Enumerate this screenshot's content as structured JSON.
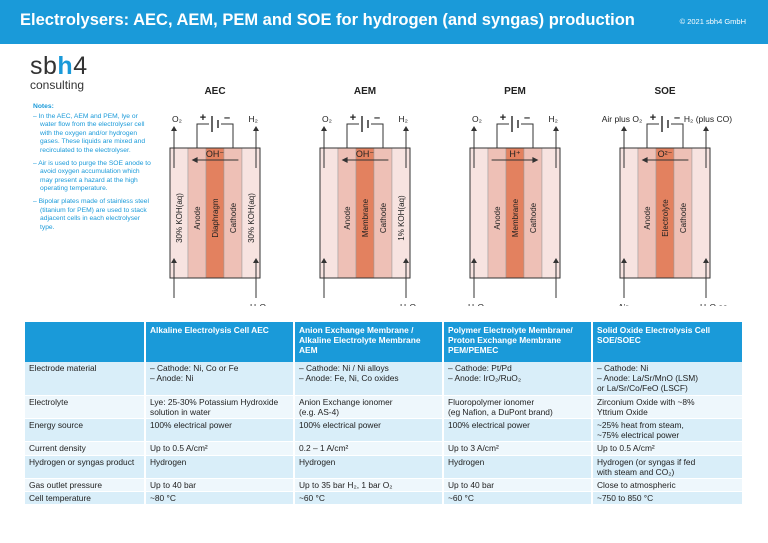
{
  "header": {
    "title": "Electrolysers: AEC, AEM, PEM and SOE for hydrogen (and syngas) production",
    "copyright": "© 2021 sbh4 GmbH"
  },
  "logo": {
    "brand_a": "sb",
    "brand_b": "h",
    "brand_c": "4",
    "sub": "consulting"
  },
  "notes": {
    "heading": "Notes:",
    "items": [
      "– In the AEC, AEM and PEM, lye or water flow from the electrolyser cell with the oxygen and/or hydrogen gases. These liquids are mixed and recirculated to the electrolyser.",
      "– Air is used to purge the SOE anode to avoid oxygen accumulation which may present a hazard at the high operating temperature.",
      "– Bipolar plates made of stainless steel (titanium for PEM) are used to stack adjacent cells in each electrolyser type."
    ]
  },
  "diagrams": {
    "colors": {
      "outer": "#f7e3e0",
      "electrode": "#eec0b6",
      "middle": "#e3815f",
      "line": "#333333"
    },
    "cells": [
      {
        "name": "AEC",
        "top_left": "O₂",
        "top_right": "H₂",
        "ion": "OH⁻",
        "ion_dir": "left",
        "layers": [
          "30% KOH(aq)",
          "Anode",
          "Diaphragm",
          "Cathode",
          "30% KOH(aq)"
        ],
        "bottom_right": [
          "H₂O",
          "as water"
        ],
        "bottom_left": [],
        "bottom_left_arrow": true
      },
      {
        "name": "AEM",
        "top_left": "O₂",
        "top_right": "H₂",
        "ion": "OH⁻",
        "ion_dir": "left",
        "layers": [
          "",
          "Anode",
          "Membrane",
          "Cathode",
          "1% KOH(aq)"
        ],
        "bottom_right": [
          "H₂O",
          "as water"
        ],
        "bottom_left": [],
        "bottom_left_arrow": true
      },
      {
        "name": "PEM",
        "top_left": "O₂",
        "top_right": "H₂",
        "ion": "H⁺",
        "ion_dir": "right",
        "layers": [
          "",
          "Anode",
          "Membrane",
          "Cathode",
          ""
        ],
        "bottom_right": [],
        "bottom_left": [
          "H₂O",
          "as water"
        ],
        "bottom_left_arrow": true
      },
      {
        "name": "SOE",
        "top_left": "Air plus O₂",
        "top_right": "H₂ (plus CO)",
        "ion": "O²⁻",
        "ion_dir": "left",
        "layers": [
          "",
          "Anode",
          "Electrolyte",
          "Cathode",
          ""
        ],
        "bottom_right": [
          "H₂O as",
          "steam",
          "(plus CO₂)"
        ],
        "bottom_left": [
          "Air"
        ],
        "bottom_left_arrow": true
      }
    ]
  },
  "table": {
    "columns": [
      "",
      "Alkaline Electrolysis Cell AEC",
      "Anion Exchange Membrane / Alkaline Electrolyte Membrane AEM",
      "Polymer Electrolyte Membrane/ Proton Exchange Membrane PEM/PEMEC",
      "Solid Oxide Electrolysis Cell SOE/SOEC"
    ],
    "rows": [
      {
        "label": "Electrode material",
        "cells": [
          "\n– Cathode: Ni, Co or Fe\n– Anode: Ni",
          "– Cathode: Ni / Ni alloys\n– Anode: Fe, Ni, Co oxides",
          "– Cathode: Pt/Pd\n– Anode: IrO₂/RuO₂",
          "– Cathode: Ni\n– Anode: La/Sr/MnO (LSM)\n   or La/Sr/Co/FeO (LSCF)"
        ]
      },
      {
        "label": "Electrolyte",
        "cells": [
          "Lye: 25-30% Potassium Hydroxide solution in water",
          "Anion Exchange ionomer\n(e.g. AS-4)",
          "Fluoropolymer ionomer\n(eg Nafion, a DuPont brand)",
          "Zirconium Oxide with ~8%\nYttrium Oxide"
        ]
      },
      {
        "label": "Energy source",
        "cells": [
          "100% electrical power",
          "100% electrical power",
          "100% electrical power",
          "~25% heat from steam,\n~75% electrical power"
        ]
      },
      {
        "label": "Current density",
        "cells": [
          "Up to 0.5 A/cm²",
          "0.2 – 1 A/cm²",
          "Up to 3 A/cm²",
          "Up to 0.5 A/cm²"
        ]
      },
      {
        "label": "Hydrogen or syngas product",
        "cells": [
          "Hydrogen",
          "Hydrogen",
          "Hydrogen",
          "Hydrogen (or syngas if fed\nwith steam and CO₂)"
        ]
      },
      {
        "label": "Gas outlet pressure",
        "cells": [
          "Up to 40 bar",
          "Up to 35 bar H₂, 1 bar O₂",
          "Up to 40 bar",
          "Close to atmospheric"
        ]
      },
      {
        "label": "Cell temperature",
        "cells": [
          "~80 °C",
          "~60 °C",
          "~60 °C",
          "~750 to 850 °C"
        ]
      }
    ]
  }
}
